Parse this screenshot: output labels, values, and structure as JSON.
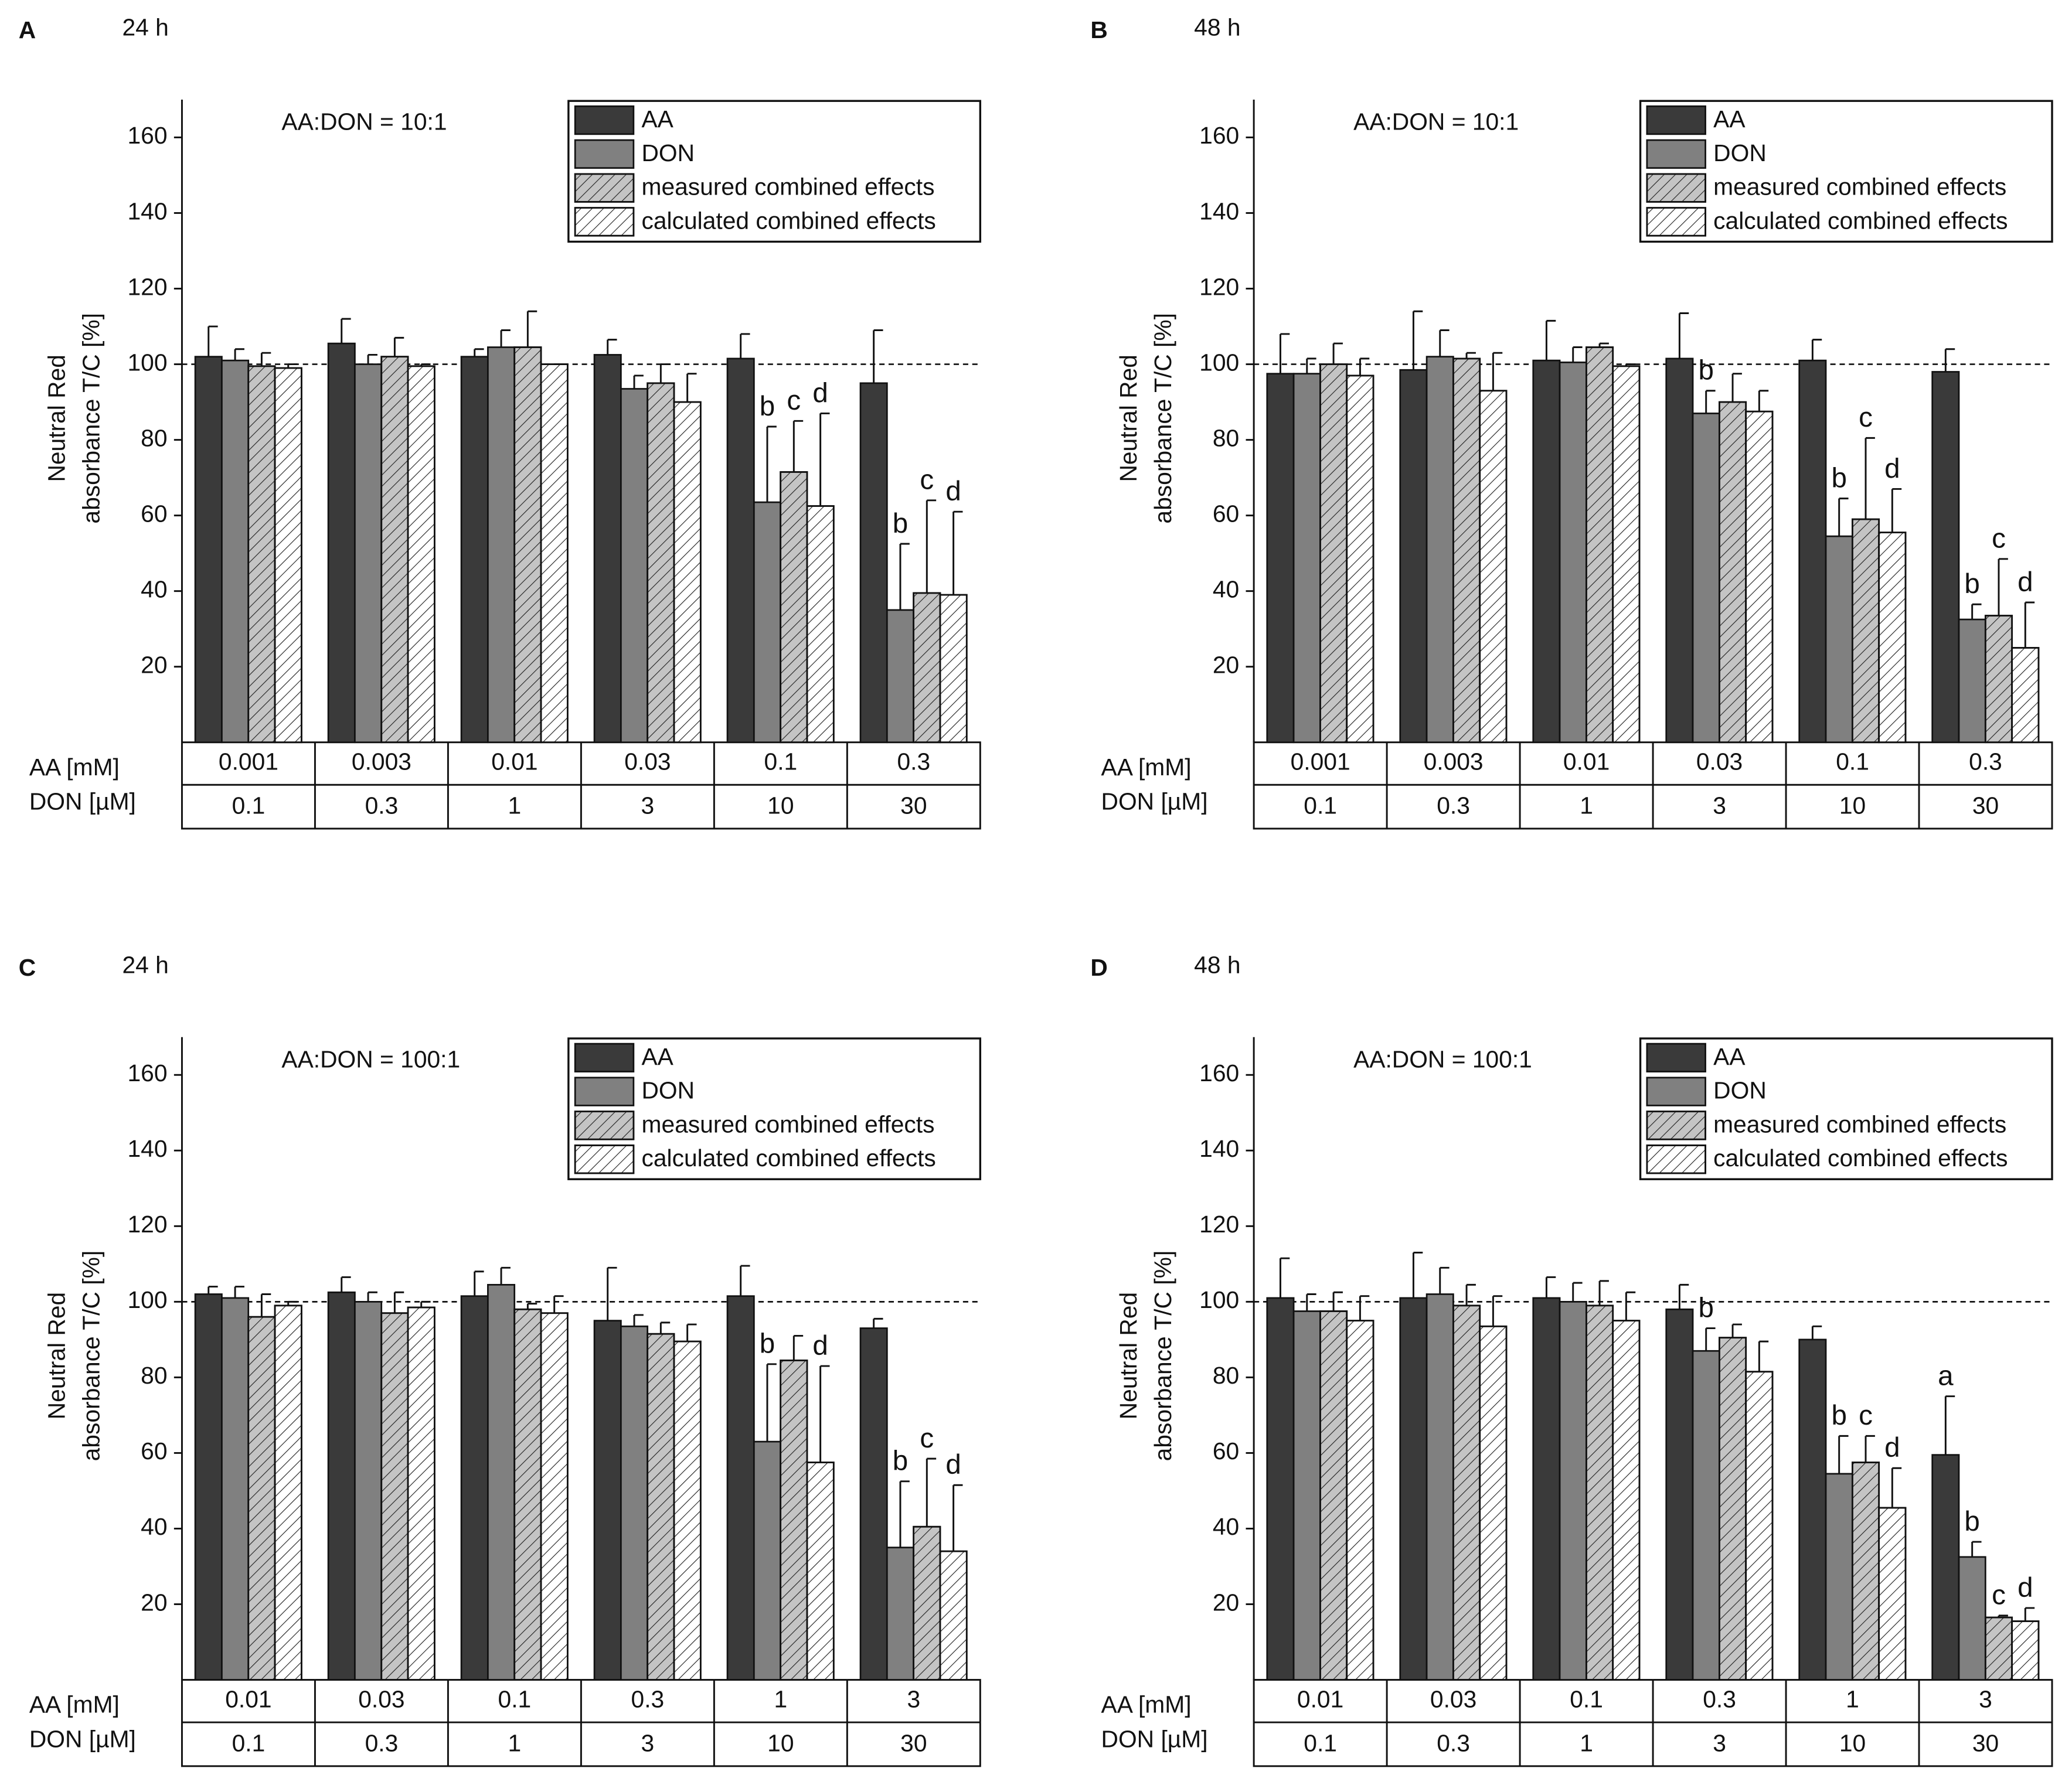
{
  "chart_data": [
    {
      "type": "bar",
      "panel": "A",
      "title": "24 h",
      "annotation": "AA:DON = 10:1",
      "ylabel": [
        "Neutral Red",
        "absorbance T/C [%]"
      ],
      "rows": [
        {
          "label": "AA [mM]",
          "values": [
            "0.001",
            "0.003",
            "0.01",
            "0.03",
            "0.1",
            "0.3"
          ]
        },
        {
          "label": "DON [µM]",
          "values": [
            "0.1",
            "0.3",
            "1",
            "3",
            "10",
            "30"
          ]
        }
      ],
      "ylim": [
        0,
        170
      ],
      "yticks": [
        20,
        40,
        60,
        80,
        100,
        120,
        140,
        160
      ],
      "reference_line": 100,
      "series": [
        {
          "name": "AA",
          "color": "#3a3a3a",
          "pattern": "solid",
          "values": [
            102,
            105.5,
            102,
            102.5,
            101.5,
            95
          ],
          "errors": [
            8,
            6.5,
            2,
            4,
            6.5,
            14
          ],
          "letters": [
            null,
            null,
            null,
            null,
            null,
            null
          ]
        },
        {
          "name": "DON",
          "color": "#808080",
          "pattern": "solid",
          "values": [
            101,
            100,
            104.5,
            93.5,
            63.5,
            35
          ],
          "errors": [
            3,
            2.5,
            4.5,
            3.5,
            20,
            17.5
          ],
          "letters": [
            null,
            null,
            null,
            null,
            "b",
            "b"
          ]
        },
        {
          "name": "measured combined effects",
          "color": "#c4c4c4",
          "pattern": "hatch",
          "values": [
            99.5,
            102,
            104.5,
            95,
            71.5,
            39.5
          ],
          "errors": [
            3.5,
            5,
            9.5,
            5,
            13.5,
            24.5
          ],
          "letters": [
            null,
            null,
            null,
            null,
            "c",
            "c"
          ]
        },
        {
          "name": "calculated combined effects",
          "color": "#ffffff",
          "pattern": "hatch",
          "values": [
            99,
            99.5,
            100,
            90,
            62.5,
            39
          ],
          "errors": [
            1,
            0.5,
            0,
            7.5,
            24.5,
            22
          ],
          "letters": [
            null,
            null,
            null,
            null,
            "d",
            "d"
          ]
        }
      ]
    },
    {
      "type": "bar",
      "panel": "B",
      "title": "48 h",
      "annotation": "AA:DON = 10:1",
      "ylabel": [
        "Neutral Red",
        "absorbance T/C [%]"
      ],
      "rows": [
        {
          "label": "AA [mM]",
          "values": [
            "0.001",
            "0.003",
            "0.01",
            "0.03",
            "0.1",
            "0.3"
          ]
        },
        {
          "label": "DON [µM]",
          "values": [
            "0.1",
            "0.3",
            "1",
            "3",
            "10",
            "30"
          ]
        }
      ],
      "ylim": [
        0,
        170
      ],
      "yticks": [
        20,
        40,
        60,
        80,
        100,
        120,
        140,
        160
      ],
      "reference_line": 100,
      "series": [
        {
          "name": "AA",
          "color": "#3a3a3a",
          "pattern": "solid",
          "values": [
            97.5,
            98.5,
            101,
            101.5,
            101,
            98
          ],
          "errors": [
            10.5,
            15.5,
            10.5,
            12,
            5.5,
            6
          ],
          "letters": [
            null,
            null,
            null,
            null,
            null,
            null
          ]
        },
        {
          "name": "DON",
          "color": "#808080",
          "pattern": "solid",
          "values": [
            97.5,
            102,
            100.5,
            87,
            54.5,
            32.5
          ],
          "errors": [
            4,
            7,
            4,
            6,
            10,
            4
          ],
          "letters": [
            null,
            null,
            null,
            "b",
            "b",
            "b"
          ]
        },
        {
          "name": "measured combined effects",
          "color": "#c4c4c4",
          "pattern": "hatch",
          "values": [
            100,
            101.5,
            104.5,
            90,
            59,
            33.5
          ],
          "errors": [
            5.5,
            1.5,
            1,
            7.5,
            21.5,
            15
          ],
          "letters": [
            null,
            null,
            null,
            null,
            "c",
            "c"
          ]
        },
        {
          "name": "calculated combined effects",
          "color": "#ffffff",
          "pattern": "hatch",
          "values": [
            97,
            93,
            99.5,
            87.5,
            55.5,
            25
          ],
          "errors": [
            4.5,
            10,
            0.5,
            5.5,
            11.5,
            12
          ],
          "letters": [
            null,
            null,
            null,
            null,
            "d",
            "d"
          ]
        }
      ]
    },
    {
      "type": "bar",
      "panel": "C",
      "title": "24 h",
      "annotation": "AA:DON = 100:1",
      "ylabel": [
        "Neutral Red",
        "absorbance T/C [%]"
      ],
      "rows": [
        {
          "label": "AA [mM]",
          "values": [
            "0.01",
            "0.03",
            "0.1",
            "0.3",
            "1",
            "3"
          ]
        },
        {
          "label": "DON [µM]",
          "values": [
            "0.1",
            "0.3",
            "1",
            "3",
            "10",
            "30"
          ]
        }
      ],
      "ylim": [
        0,
        170
      ],
      "yticks": [
        20,
        40,
        60,
        80,
        100,
        120,
        140,
        160
      ],
      "reference_line": 100,
      "series": [
        {
          "name": "AA",
          "color": "#3a3a3a",
          "pattern": "solid",
          "values": [
            102,
            102.5,
            101.5,
            95,
            101.5,
            93
          ],
          "errors": [
            2,
            4,
            6.5,
            14,
            8,
            2.5
          ],
          "letters": [
            null,
            null,
            null,
            null,
            null,
            null
          ]
        },
        {
          "name": "DON",
          "color": "#808080",
          "pattern": "solid",
          "values": [
            101,
            100,
            104.5,
            93.5,
            63,
            35
          ],
          "errors": [
            3,
            2.5,
            4.5,
            3,
            20.5,
            17.5
          ],
          "letters": [
            null,
            null,
            null,
            null,
            "b",
            "b"
          ]
        },
        {
          "name": "measured combined effects",
          "color": "#c4c4c4",
          "pattern": "hatch",
          "values": [
            96,
            97,
            98,
            91.5,
            84.5,
            40.5
          ],
          "errors": [
            6,
            5.5,
            1.5,
            3,
            6.5,
            18
          ],
          "letters": [
            null,
            null,
            null,
            null,
            null,
            "c"
          ]
        },
        {
          "name": "calculated combined effects",
          "color": "#ffffff",
          "pattern": "hatch",
          "values": [
            99,
            98.5,
            97,
            89.5,
            57.5,
            34
          ],
          "errors": [
            1,
            1.5,
            4.5,
            4.5,
            25.5,
            17.5
          ],
          "letters": [
            null,
            null,
            null,
            null,
            "d",
            "d"
          ]
        }
      ]
    },
    {
      "type": "bar",
      "panel": "D",
      "title": "48 h",
      "annotation": "AA:DON = 100:1",
      "ylabel": [
        "Neutral Red",
        "absorbance T/C [%]"
      ],
      "rows": [
        {
          "label": "AA [mM]",
          "values": [
            "0.01",
            "0.03",
            "0.1",
            "0.3",
            "1",
            "3"
          ]
        },
        {
          "label": "DON [µM]",
          "values": [
            "0.1",
            "0.3",
            "1",
            "3",
            "10",
            "30"
          ]
        }
      ],
      "ylim": [
        0,
        170
      ],
      "yticks": [
        20,
        40,
        60,
        80,
        100,
        120,
        140,
        160
      ],
      "reference_line": 100,
      "series": [
        {
          "name": "AA",
          "color": "#3a3a3a",
          "pattern": "solid",
          "values": [
            101,
            101,
            101,
            98,
            90,
            59.5
          ],
          "errors": [
            10.5,
            12,
            5.5,
            6.5,
            3.5,
            15.5
          ],
          "letters": [
            null,
            null,
            null,
            null,
            null,
            "a"
          ]
        },
        {
          "name": "DON",
          "color": "#808080",
          "pattern": "solid",
          "values": [
            97.5,
            102,
            100,
            87,
            54.5,
            32.5
          ],
          "errors": [
            4.5,
            7,
            5,
            6,
            10,
            4
          ],
          "letters": [
            null,
            null,
            null,
            "b",
            "b",
            "b"
          ]
        },
        {
          "name": "measured combined effects",
          "color": "#c4c4c4",
          "pattern": "hatch",
          "values": [
            97.5,
            99,
            99,
            90.5,
            57.5,
            16.5
          ],
          "errors": [
            5,
            5.5,
            6.5,
            3.5,
            7,
            0.5
          ],
          "letters": [
            null,
            null,
            null,
            null,
            "c",
            "c"
          ]
        },
        {
          "name": "calculated combined effects",
          "color": "#ffffff",
          "pattern": "hatch",
          "values": [
            95,
            93.5,
            95,
            81.5,
            45.5,
            15.5
          ],
          "errors": [
            6.5,
            8,
            7.5,
            8,
            10.5,
            3.5
          ],
          "letters": [
            null,
            null,
            null,
            null,
            "d",
            "d"
          ]
        }
      ]
    }
  ]
}
